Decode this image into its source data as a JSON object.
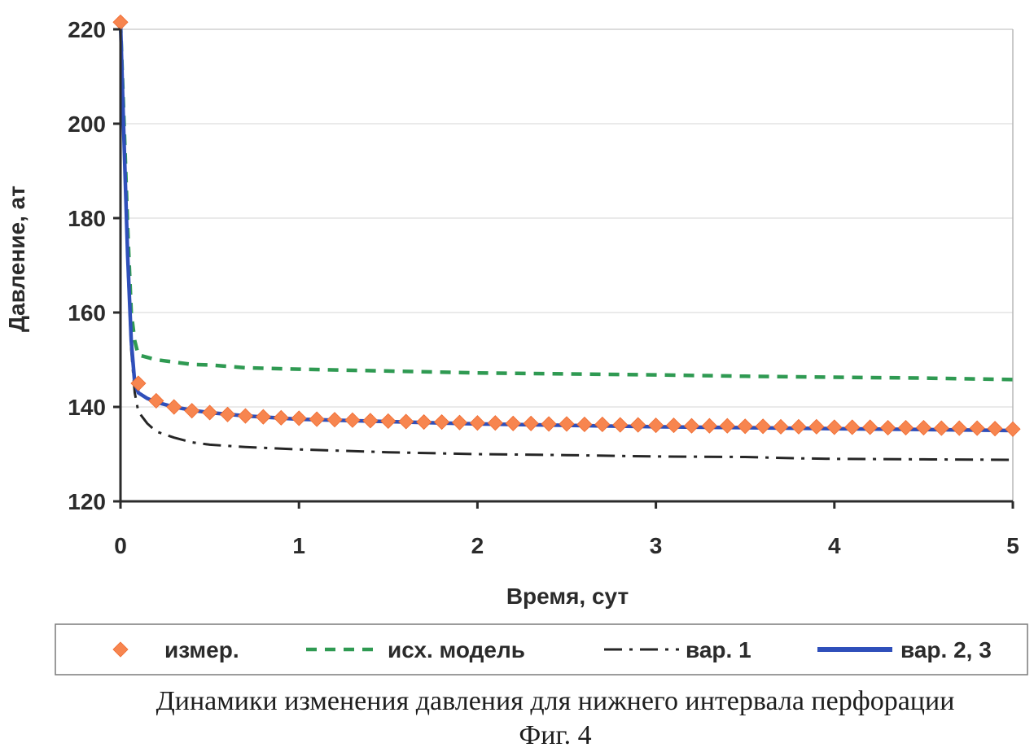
{
  "chart_data": {
    "type": "line",
    "title": "",
    "xlabel": "Время, сут",
    "ylabel": "Давление, ат",
    "xlim": [
      0,
      5
    ],
    "ylim": [
      120,
      220
    ],
    "xticks": [
      "0",
      "1",
      "2",
      "3",
      "4",
      "5"
    ],
    "yticks": [
      "120",
      "140",
      "160",
      "180",
      "200",
      "220"
    ],
    "grid": true,
    "legend_position": "bottom",
    "series": [
      {
        "name": "измер.",
        "style": "markers",
        "marker": "diamond",
        "color": "#f7854f",
        "x": [
          0,
          0.1,
          0.2,
          0.3,
          0.4,
          0.5,
          0.6,
          0.7,
          0.8,
          0.9,
          1.0,
          1.1,
          1.2,
          1.3,
          1.4,
          1.5,
          1.6,
          1.7,
          1.8,
          1.9,
          2.0,
          2.1,
          2.2,
          2.3,
          2.4,
          2.5,
          2.6,
          2.7,
          2.8,
          2.9,
          3.0,
          3.1,
          3.2,
          3.3,
          3.4,
          3.5,
          3.6,
          3.7,
          3.8,
          3.9,
          4.0,
          4.1,
          4.2,
          4.3,
          4.4,
          4.5,
          4.6,
          4.7,
          4.8,
          4.9,
          5.0
        ],
        "y": [
          221.5,
          145,
          141.3,
          140,
          139.2,
          138.8,
          138.4,
          138.1,
          137.9,
          137.7,
          137.6,
          137.4,
          137.3,
          137.2,
          137.1,
          137.0,
          136.9,
          136.8,
          136.8,
          136.7,
          136.6,
          136.6,
          136.5,
          136.5,
          136.4,
          136.4,
          136.3,
          136.3,
          136.2,
          136.2,
          136.1,
          136.1,
          136.0,
          136.0,
          136.0,
          135.9,
          135.9,
          135.8,
          135.8,
          135.8,
          135.7,
          135.7,
          135.7,
          135.6,
          135.6,
          135.6,
          135.5,
          135.5,
          135.5,
          135.4,
          135.3
        ]
      },
      {
        "name": "исх. модель",
        "style": "dashed",
        "color": "#2f9a52",
        "x": [
          0,
          0.02,
          0.04,
          0.06,
          0.08,
          0.1,
          0.15,
          0.2,
          0.3,
          0.4,
          0.5,
          0.7,
          1.0,
          1.5,
          2.0,
          2.5,
          3.0,
          3.5,
          4.0,
          4.5,
          5.0
        ],
        "y": [
          221.5,
          200,
          178,
          160,
          154,
          151,
          150.5,
          150,
          149.5,
          149,
          148.9,
          148.3,
          148,
          147.6,
          147.2,
          147,
          146.8,
          146.5,
          146.3,
          146.1,
          145.8
        ]
      },
      {
        "name": "вар. 1",
        "style": "dash-dot",
        "color": "#262626",
        "x": [
          0,
          0.02,
          0.04,
          0.06,
          0.08,
          0.1,
          0.15,
          0.2,
          0.3,
          0.4,
          0.5,
          0.7,
          1.0,
          1.5,
          2.0,
          2.5,
          3.0,
          3.5,
          3.8,
          4.0,
          4.5,
          5.0
        ],
        "y": [
          221.5,
          195,
          170,
          152,
          143,
          139,
          136.5,
          134.8,
          133.5,
          132.5,
          132,
          131.5,
          131,
          130.4,
          130,
          129.8,
          129.5,
          129.4,
          129.1,
          129,
          128.9,
          128.8
        ]
      },
      {
        "name": "вар. 2, 3",
        "style": "solid",
        "color": "#2f4fba",
        "x": [
          0,
          0.02,
          0.04,
          0.06,
          0.08,
          0.1,
          0.15,
          0.2,
          0.3,
          0.4,
          0.5,
          0.7,
          1.0,
          1.5,
          2.0,
          2.5,
          3.0,
          3.5,
          4.0,
          4.5,
          5.0
        ],
        "y": [
          221.5,
          196,
          172,
          154,
          145,
          143,
          141.8,
          141,
          140,
          139.3,
          138.8,
          138.1,
          137.4,
          136.9,
          136.4,
          136.1,
          135.8,
          135.6,
          135.4,
          135.2,
          135
        ]
      }
    ]
  },
  "caption": {
    "line1": "Динамики изменения давления для нижнего интервала перфорации",
    "line2": "Фиг. 4"
  }
}
